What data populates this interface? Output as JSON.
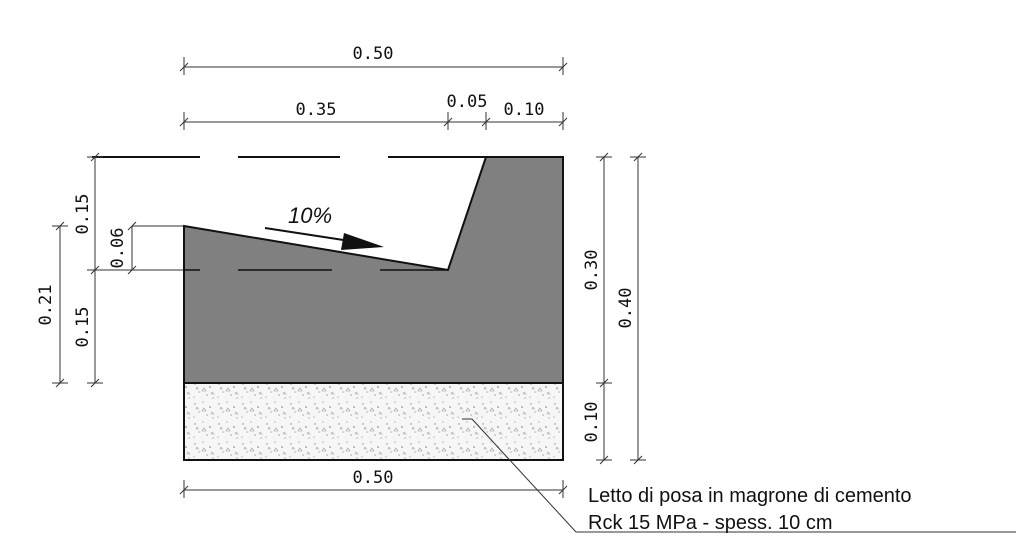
{
  "dimensions": {
    "top_total": "0.50",
    "top_left": "0.35",
    "top_mid": "0.05",
    "top_right": "0.10",
    "left_015_top": "0.15",
    "left_006": "0.06",
    "left_021": "0.21",
    "left_015_bottom": "0.15",
    "right_030": "0.30",
    "right_040": "0.40",
    "right_010": "0.10",
    "bottom_total": "0.50"
  },
  "slope": {
    "label": "10%"
  },
  "note": {
    "line1": "Letto di posa in magrone di cemento",
    "line2": "Rck 15 MPa - spess. 10 cm"
  },
  "colors": {
    "concrete_fill": "#808080",
    "base_fill": "#f4f4f4",
    "line": "#111111"
  }
}
